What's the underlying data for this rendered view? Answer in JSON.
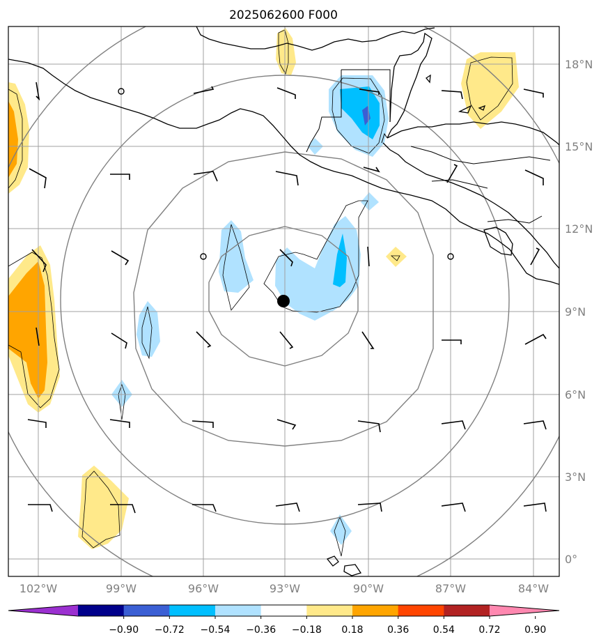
{
  "title": "2025062600 F000",
  "lon_labels": [
    "102°W",
    "99°W",
    "96°W",
    "93°W",
    "90°W",
    "87°W",
    "84°W"
  ],
  "lat_labels": [
    "18°N",
    "15°N",
    "12°N",
    "9°N",
    "6°N",
    "3°N",
    "0°"
  ],
  "colorbar": {
    "colors": [
      "#9b30d0",
      "#00008b",
      "#3b5fd4",
      "#00bfff",
      "#b0e2ff",
      "#ffffff",
      "#ffe98a",
      "#ffa500",
      "#ff4500",
      "#b22222",
      "#ff88b0"
    ],
    "labels": [
      "−0.90",
      "−0.72",
      "−0.54",
      "−0.36",
      "−0.18",
      "0.18",
      "0.36",
      "0.54",
      "0.72",
      "0.90"
    ]
  },
  "storm_center": {
    "lon": -93.0,
    "lat": 9.4
  }
}
